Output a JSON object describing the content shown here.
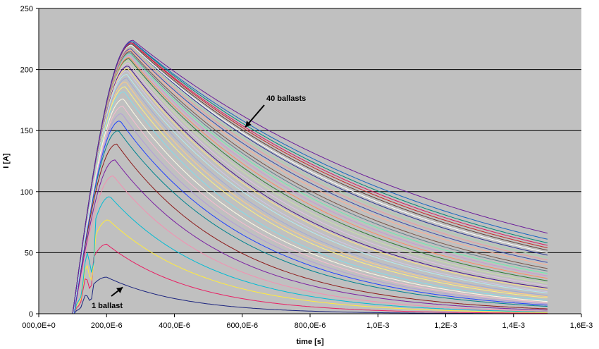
{
  "chart_data": {
    "type": "line",
    "xlabel": "time [s]",
    "ylabel": "I [A]",
    "xlim": [
      0,
      0.0016
    ],
    "ylim": [
      0,
      250
    ],
    "grid": "horizontal",
    "background": "#c0c0c0",
    "x_tick_labels": [
      "000,0E+0",
      "200,0E-6",
      "400,0E-6",
      "600,0E-6",
      "800,0E-6",
      "1,0E-3",
      "1,2E-3",
      "1,4E-3",
      "1,6E-3"
    ],
    "x_tick_values": [
      0,
      0.0002,
      0.0004,
      0.0006,
      0.0008,
      0.001,
      0.0012,
      0.0014,
      0.0016
    ],
    "y_tick_labels": [
      "0",
      "50",
      "100",
      "150",
      "200",
      "250"
    ],
    "y_tick_values": [
      0,
      50,
      100,
      150,
      200,
      250
    ],
    "annotations": [
      {
        "text": "1 ballast",
        "points_to": {
          "x": 0.00026,
          "y": 24
        }
      },
      {
        "text": "40 ballasts",
        "points_to": {
          "x": 0.000605,
          "y": 154
        }
      }
    ],
    "colors": [
      "#1a237e",
      "#e91e63",
      "#ffeb3b",
      "#00bcd4",
      "#f48fb1",
      "#7b1fa2",
      "#8d1b1b",
      "#00838f",
      "#1e40ff",
      "#b39ddb",
      "#f8bbd0",
      "#fffde7",
      "#80deea",
      "#fff176",
      "#ffcc80",
      "#9fa8da",
      "#b2ebf2",
      "#d1c4e9",
      "#ffe082",
      "#4a148c",
      "#e1bee7",
      "#c5e1a5",
      "#2e7d32",
      "#ff8a65",
      "#ce93d8",
      "#69f0ae",
      "#607d8b",
      "#795548",
      "#ffab91",
      "#3949ab",
      "#ef9a9a",
      "#a5d6a7",
      "#283593",
      "#ffffff",
      "#5d4037",
      "#c62828",
      "#d81b60",
      "#00897b",
      "#1565c0",
      "#6a1b9a"
    ],
    "series": [
      {
        "t0": 0.000105,
        "peak_x": 0.0002,
        "peak_y": 30,
        "end_y": 0.1
      },
      {
        "t0": 0.000105,
        "peak_x": 0.0002,
        "peak_y": 57,
        "end_y": 0.4
      },
      {
        "t0": 0.000105,
        "peak_x": 0.000205,
        "peak_y": 77,
        "end_y": 1
      },
      {
        "t0": 0.000105,
        "peak_x": 0.00021,
        "peak_y": 96,
        "end_y": 1.5
      },
      {
        "t0": 0.000104,
        "peak_x": 0.00022,
        "peak_y": 113,
        "end_y": 2
      },
      {
        "t0": 0.000104,
        "peak_x": 0.000225,
        "peak_y": 126,
        "end_y": 3
      },
      {
        "t0": 0.000103,
        "peak_x": 0.00023,
        "peak_y": 139,
        "end_y": 4
      },
      {
        "t0": 0.000103,
        "peak_x": 0.000235,
        "peak_y": 150,
        "end_y": 6
      },
      {
        "t0": 0.000103,
        "peak_x": 0.00024,
        "peak_y": 158,
        "end_y": 7
      },
      {
        "t0": 0.000102,
        "peak_x": 0.000245,
        "peak_y": 164,
        "end_y": 8
      },
      {
        "t0": 0.000102,
        "peak_x": 0.000248,
        "peak_y": 170,
        "end_y": 9
      },
      {
        "t0": 0.000102,
        "peak_x": 0.00025,
        "peak_y": 176,
        "end_y": 10
      },
      {
        "t0": 0.000102,
        "peak_x": 0.000252,
        "peak_y": 182,
        "end_y": 11
      },
      {
        "t0": 0.000101,
        "peak_x": 0.000255,
        "peak_y": 186,
        "end_y": 13
      },
      {
        "t0": 0.000101,
        "peak_x": 0.000257,
        "peak_y": 190,
        "end_y": 14
      },
      {
        "t0": 0.000101,
        "peak_x": 0.00026,
        "peak_y": 193,
        "end_y": 15
      },
      {
        "t0": 0.000101,
        "peak_x": 0.00026,
        "peak_y": 196,
        "end_y": 17
      },
      {
        "t0": 0.0001,
        "peak_x": 0.000262,
        "peak_y": 199,
        "end_y": 18
      },
      {
        "t0": 0.0001,
        "peak_x": 0.000263,
        "peak_y": 201,
        "end_y": 20
      },
      {
        "t0": 0.0001,
        "peak_x": 0.000264,
        "peak_y": 203,
        "end_y": 21
      },
      {
        "t0": 0.0001,
        "peak_x": 0.000265,
        "peak_y": 205,
        "end_y": 23
      },
      {
        "t0": 0.0001,
        "peak_x": 0.000266,
        "peak_y": 207,
        "end_y": 25
      },
      {
        "t0": 0.0001,
        "peak_x": 0.000267,
        "peak_y": 209,
        "end_y": 27
      },
      {
        "t0": 0.0001,
        "peak_x": 0.000268,
        "peak_y": 210,
        "end_y": 29
      },
      {
        "t0": 0.0001,
        "peak_x": 0.000269,
        "peak_y": 212,
        "end_y": 31
      },
      {
        "t0": 0.0001,
        "peak_x": 0.00027,
        "peak_y": 213,
        "end_y": 33
      },
      {
        "t0": 0.0001,
        "peak_x": 0.00027,
        "peak_y": 214,
        "end_y": 35
      },
      {
        "t0": 0.0001,
        "peak_x": 0.000271,
        "peak_y": 215,
        "end_y": 37
      },
      {
        "t0": 0.0001,
        "peak_x": 0.000272,
        "peak_y": 216,
        "end_y": 40
      },
      {
        "t0": 0.0001,
        "peak_x": 0.000272,
        "peak_y": 217,
        "end_y": 42
      },
      {
        "t0": 0.0001,
        "peak_x": 0.000273,
        "peak_y": 218,
        "end_y": 44
      },
      {
        "t0": 0.0001,
        "peak_x": 0.000273,
        "peak_y": 219,
        "end_y": 46
      },
      {
        "t0": 0.0001,
        "peak_x": 0.000274,
        "peak_y": 220,
        "end_y": 48
      },
      {
        "t0": 0.0001,
        "peak_x": 0.000274,
        "peak_y": 220,
        "end_y": 50
      },
      {
        "t0": 0.0001,
        "peak_x": 0.000275,
        "peak_y": 221,
        "end_y": 52
      },
      {
        "t0": 0.0001,
        "peak_x": 0.000275,
        "peak_y": 222,
        "end_y": 54
      },
      {
        "t0": 0.0001,
        "peak_x": 0.000276,
        "peak_y": 222,
        "end_y": 56
      },
      {
        "t0": 0.0001,
        "peak_x": 0.000276,
        "peak_y": 223,
        "end_y": 58
      },
      {
        "t0": 0.0001,
        "peak_x": 0.000277,
        "peak_y": 223,
        "end_y": 61
      },
      {
        "t0": 0.0001,
        "peak_x": 0.000278,
        "peak_y": 224,
        "end_y": 66
      }
    ],
    "x_end": 0.0015
  }
}
